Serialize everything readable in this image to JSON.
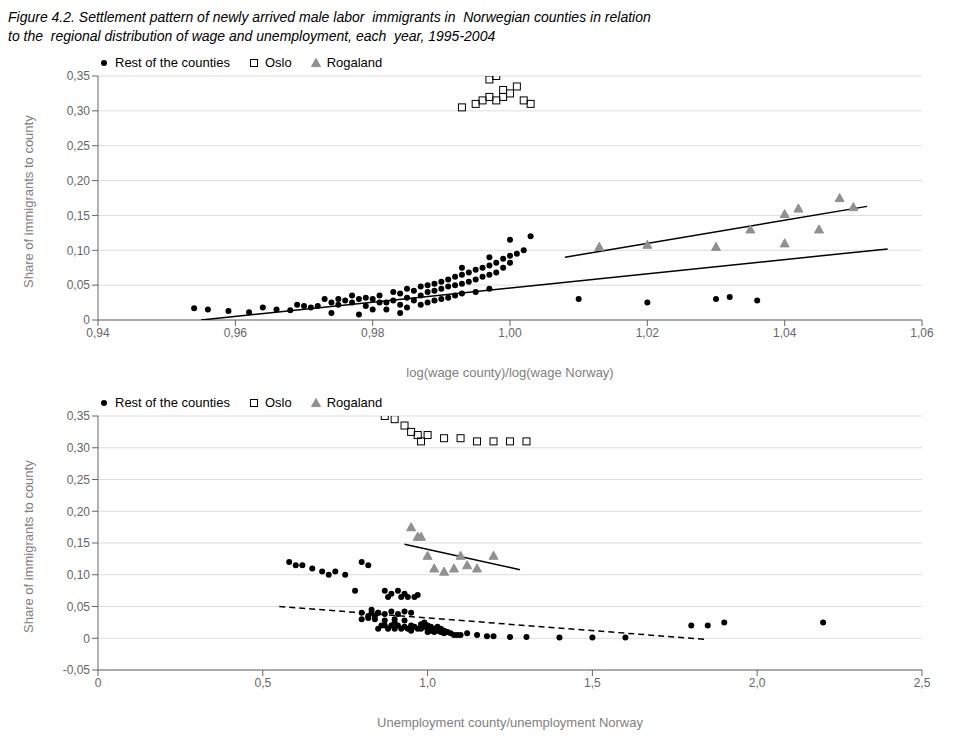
{
  "chart_data": [
    {
      "type": "scatter",
      "title": "Figure 4.2. Settlement pattern of newly arrived male labor  immigrants in  Norwegian counties in relation\nto the  regional distribution of wage and unemployment, each  year, 1995-2004",
      "xlabel": "log(wage county)/log(wage Norway)",
      "ylabel": "Share of immigrants to county",
      "xlim": [
        0.94,
        1.06
      ],
      "ylim": [
        0,
        0.35
      ],
      "xticks": [
        {
          "value": 0.94,
          "label": "0,94"
        },
        {
          "value": 0.96,
          "label": "0,96"
        },
        {
          "value": 0.98,
          "label": "0,98"
        },
        {
          "value": 1.0,
          "label": "1,00"
        },
        {
          "value": 1.02,
          "label": "1,02"
        },
        {
          "value": 1.04,
          "label": "1,04"
        },
        {
          "value": 1.06,
          "label": "1,06"
        }
      ],
      "yticks": [
        0,
        {
          "value": 0.05,
          "label": "0,05"
        },
        {
          "value": 0.1,
          "label": "0,10"
        },
        {
          "value": 0.15,
          "label": "0,15"
        },
        {
          "value": 0.2,
          "label": "0,20"
        },
        {
          "value": 0.25,
          "label": "0,25"
        },
        {
          "value": 0.3,
          "label": "0,30"
        },
        {
          "value": 0.35,
          "label": "0,35"
        }
      ],
      "grid": true,
      "legend": "upper left",
      "series": [
        {
          "name": "Rest of the counties",
          "type": "scatter",
          "marker": "circle",
          "color": "#000000",
          "x": [
            0.954,
            0.956,
            0.959,
            0.962,
            0.964,
            0.966,
            0.968,
            0.969,
            0.97,
            0.971,
            0.972,
            0.973,
            0.974,
            0.974,
            0.975,
            0.975,
            0.976,
            0.977,
            0.977,
            0.978,
            0.978,
            0.979,
            0.979,
            0.98,
            0.98,
            0.981,
            0.981,
            0.982,
            0.982,
            0.983,
            0.983,
            0.984,
            0.984,
            0.984,
            0.985,
            0.985,
            0.985,
            0.986,
            0.986,
            0.987,
            0.987,
            0.987,
            0.988,
            0.988,
            0.988,
            0.989,
            0.989,
            0.989,
            0.99,
            0.99,
            0.99,
            0.991,
            0.991,
            0.991,
            0.992,
            0.992,
            0.992,
            0.993,
            0.993,
            0.993,
            0.994,
            0.994,
            0.995,
            0.995,
            0.995,
            0.996,
            0.996,
            0.997,
            0.997,
            0.997,
            0.998,
            0.998,
            0.999,
            0.999,
            1.0,
            1.0,
            1.001,
            1.002,
            1.01,
            1.02,
            1.03,
            1.032,
            1.036,
            0.993,
            0.997,
            1.0,
            1.003
          ],
          "values": [
            0.017,
            0.015,
            0.013,
            0.011,
            0.018,
            0.015,
            0.014,
            0.022,
            0.02,
            0.018,
            0.02,
            0.03,
            0.025,
            0.01,
            0.022,
            0.03,
            0.028,
            0.025,
            0.035,
            0.03,
            0.008,
            0.032,
            0.02,
            0.03,
            0.015,
            0.035,
            0.025,
            0.025,
            0.015,
            0.04,
            0.028,
            0.038,
            0.022,
            0.01,
            0.045,
            0.032,
            0.018,
            0.042,
            0.028,
            0.048,
            0.035,
            0.022,
            0.05,
            0.04,
            0.025,
            0.052,
            0.042,
            0.028,
            0.055,
            0.045,
            0.03,
            0.058,
            0.048,
            0.032,
            0.062,
            0.05,
            0.035,
            0.065,
            0.052,
            0.038,
            0.068,
            0.055,
            0.072,
            0.058,
            0.04,
            0.075,
            0.062,
            0.078,
            0.065,
            0.045,
            0.082,
            0.068,
            0.088,
            0.075,
            0.092,
            0.082,
            0.095,
            0.1,
            0.03,
            0.025,
            0.03,
            0.033,
            0.028,
            0.075,
            0.09,
            0.115,
            0.12
          ]
        },
        {
          "name": "Oslo",
          "type": "scatter",
          "marker": "open-square",
          "color": "#000000",
          "x": [
            0.993,
            0.995,
            0.996,
            0.997,
            0.997,
            0.998,
            0.998,
            0.999,
            0.999,
            1.0,
            1.001,
            1.002,
            1.003
          ],
          "values": [
            0.305,
            0.31,
            0.315,
            0.32,
            0.345,
            0.315,
            0.35,
            0.32,
            0.33,
            0.325,
            0.335,
            0.315,
            0.31
          ]
        },
        {
          "name": "Rogaland",
          "type": "scatter",
          "marker": "triangle",
          "color": "#909090",
          "x": [
            1.013,
            1.02,
            1.03,
            1.035,
            1.04,
            1.04,
            1.042,
            1.045,
            1.048,
            1.05
          ],
          "values": [
            0.105,
            0.108,
            0.105,
            0.13,
            0.11,
            0.152,
            0.16,
            0.13,
            0.175,
            0.162
          ]
        },
        {
          "type": "line",
          "line_style": "solid",
          "color": "#000000",
          "x": [
            0.955,
            1.055
          ],
          "values": [
            0.0,
            0.102
          ]
        },
        {
          "type": "line",
          "line_style": "solid",
          "color": "#000000",
          "x": [
            1.008,
            1.052
          ],
          "values": [
            0.09,
            0.163
          ]
        }
      ]
    },
    {
      "type": "scatter",
      "xlabel": "Unemployment county/unemployment Norway",
      "ylabel": "Share of immigrants to county",
      "xlim": [
        0,
        2.5
      ],
      "ylim": [
        -0.05,
        0.35
      ],
      "xticks": [
        0,
        {
          "value": 0.5,
          "label": "0,5"
        },
        {
          "value": 1.0,
          "label": "1,0"
        },
        {
          "value": 1.5,
          "label": "1,5"
        },
        {
          "value": 2.0,
          "label": "2,0"
        },
        {
          "value": 2.5,
          "label": "2,5"
        }
      ],
      "yticks": [
        {
          "value": -0.05,
          "label": "-0,05"
        },
        0,
        {
          "value": 0.05,
          "label": "0,05"
        },
        {
          "value": 0.1,
          "label": "0,10"
        },
        {
          "value": 0.15,
          "label": "0,15"
        },
        {
          "value": 0.2,
          "label": "0,20"
        },
        {
          "value": 0.25,
          "label": "0,25"
        },
        {
          "value": 0.3,
          "label": "0,30"
        },
        {
          "value": 0.35,
          "label": "0,35"
        }
      ],
      "grid": true,
      "legend": "upper left",
      "series": [
        {
          "name": "Rest of the counties",
          "type": "scatter",
          "marker": "circle",
          "color": "#000000",
          "x": [
            0.58,
            0.6,
            0.62,
            0.65,
            0.68,
            0.7,
            0.72,
            0.75,
            0.78,
            0.8,
            0.8,
            0.82,
            0.82,
            0.83,
            0.84,
            0.85,
            0.85,
            0.86,
            0.87,
            0.87,
            0.88,
            0.88,
            0.89,
            0.89,
            0.9,
            0.9,
            0.91,
            0.91,
            0.92,
            0.92,
            0.93,
            0.93,
            0.94,
            0.94,
            0.95,
            0.95,
            0.96,
            0.96,
            0.97,
            0.97,
            0.98,
            0.98,
            0.99,
            0.99,
            1.0,
            1.0,
            1.0,
            1.01,
            1.01,
            1.02,
            1.02,
            1.03,
            1.03,
            1.04,
            1.04,
            1.05,
            1.05,
            1.06,
            1.07,
            1.08,
            1.09,
            1.1,
            1.12,
            1.15,
            1.18,
            1.2,
            1.25,
            1.3,
            1.4,
            1.5,
            1.6,
            1.8,
            1.85,
            1.9,
            2.2,
            0.83,
            0.85,
            0.87,
            0.89,
            0.91,
            0.93,
            0.95,
            0.8,
            0.82,
            0.84,
            0.87,
            0.9,
            0.93
          ],
          "values": [
            0.12,
            0.115,
            0.115,
            0.11,
            0.105,
            0.1,
            0.105,
            0.1,
            0.075,
            0.04,
            0.12,
            0.035,
            0.115,
            0.045,
            0.03,
            0.04,
            0.015,
            0.02,
            0.02,
            0.075,
            0.015,
            0.065,
            0.02,
            0.07,
            0.015,
            0.025,
            0.02,
            0.075,
            0.015,
            0.065,
            0.018,
            0.07,
            0.015,
            0.065,
            0.012,
            0.02,
            0.018,
            0.065,
            0.015,
            0.068,
            0.015,
            0.022,
            0.018,
            0.025,
            0.01,
            0.015,
            0.02,
            0.012,
            0.018,
            0.01,
            0.015,
            0.012,
            0.018,
            0.01,
            0.015,
            0.012,
            0.008,
            0.01,
            0.008,
            0.005,
            0.005,
            0.005,
            0.008,
            0.005,
            0.003,
            0.003,
            0.002,
            0.002,
            0.001,
            0.001,
            0.001,
            0.02,
            0.02,
            0.025,
            0.025,
            0.04,
            0.04,
            0.038,
            0.042,
            0.038,
            0.042,
            0.04,
            0.03,
            0.032,
            0.035,
            0.028,
            0.03,
            0.028
          ]
        },
        {
          "name": "Oslo",
          "type": "scatter",
          "marker": "open-square",
          "color": "#000000",
          "x": [
            0.87,
            0.9,
            0.93,
            0.95,
            0.97,
            0.98,
            1.0,
            1.05,
            1.1,
            1.15,
            1.2,
            1.25,
            1.3
          ],
          "values": [
            0.35,
            0.345,
            0.335,
            0.325,
            0.32,
            0.31,
            0.32,
            0.315,
            0.315,
            0.31,
            0.31,
            0.31,
            0.31
          ]
        },
        {
          "name": "Rogaland",
          "type": "scatter",
          "marker": "triangle",
          "color": "#909090",
          "x": [
            0.95,
            0.97,
            0.98,
            1.0,
            1.02,
            1.05,
            1.08,
            1.1,
            1.12,
            1.15,
            1.2
          ],
          "values": [
            0.175,
            0.16,
            0.16,
            0.13,
            0.11,
            0.105,
            0.11,
            0.13,
            0.115,
            0.11,
            0.13
          ]
        },
        {
          "type": "line",
          "line_style": "dashed",
          "color": "#000000",
          "x": [
            0.55,
            1.85
          ],
          "values": [
            0.05,
            -0.002
          ]
        },
        {
          "type": "line",
          "line_style": "solid",
          "color": "#000000",
          "x": [
            0.93,
            1.28
          ],
          "values": [
            0.148,
            0.108
          ]
        }
      ]
    }
  ]
}
